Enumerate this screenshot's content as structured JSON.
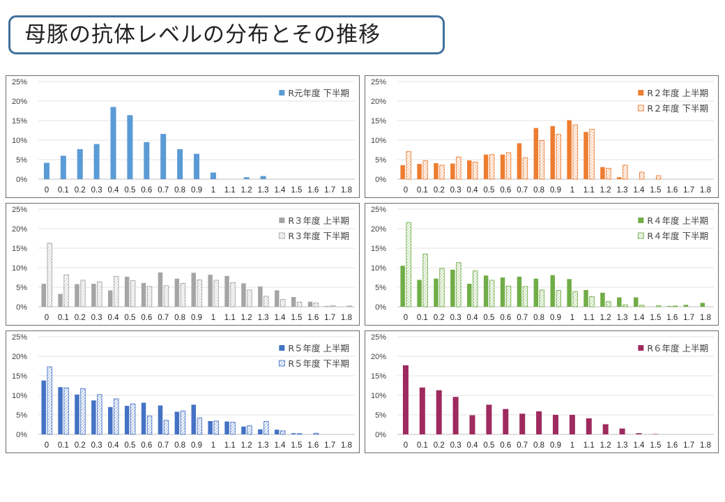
{
  "slide": {
    "title": "母豚の抗体レベルの分布とその推移"
  },
  "chart_data": [
    {
      "type": "bar",
      "categories": [
        "0",
        "0.1",
        "0.2",
        "0.3",
        "0.4",
        "0.5",
        "0.6",
        "0.7",
        "0.8",
        "0.9",
        "1",
        "1.1",
        "1.2",
        "1.3",
        "1.4",
        "1.5",
        "1.6",
        "1.7",
        "1.8"
      ],
      "y_ticks": [
        "0%",
        "5%",
        "10%",
        "15%",
        "20%",
        "25%"
      ],
      "ylim": [
        0,
        25
      ],
      "legend_position": "top-right",
      "series": [
        {
          "name": "R元年度 下半期",
          "style": "solid",
          "color": "#5b9bd5",
          "values": [
            4.2,
            6.0,
            7.7,
            9.0,
            18.5,
            16.4,
            9.5,
            11.6,
            7.7,
            6.5,
            1.7,
            0,
            0.5,
            0.8,
            0,
            0,
            0,
            0,
            0
          ]
        }
      ]
    },
    {
      "type": "bar",
      "categories": [
        "0",
        "0.1",
        "0.2",
        "0.3",
        "0.4",
        "0.5",
        "0.6",
        "0.7",
        "0.8",
        "0.9",
        "1",
        "1.1",
        "1.2",
        "1.3",
        "1.4",
        "1.5",
        "1.6",
        "1.7",
        "1.8"
      ],
      "y_ticks": [
        "0%",
        "5%",
        "10%",
        "15%",
        "20%",
        "25%"
      ],
      "ylim": [
        0,
        25
      ],
      "legend_position": "top-right",
      "series": [
        {
          "name": "R２年度 上半期",
          "style": "solid",
          "color": "#ed7d31",
          "values": [
            3.6,
            3.9,
            4.1,
            4.0,
            4.8,
            6.3,
            6.3,
            9.2,
            13.1,
            13.6,
            15.1,
            12.1,
            3.1,
            0.5,
            0,
            0,
            0,
            0,
            0
          ]
        },
        {
          "name": "R２年度 下半期",
          "style": "hatch",
          "color": "#ed7d31",
          "values": [
            7.1,
            4.7,
            3.6,
            5.7,
            4.4,
            6.3,
            6.8,
            5.5,
            9.9,
            11.5,
            13.9,
            12.8,
            2.8,
            3.6,
            1.8,
            0.9,
            0,
            0,
            0
          ]
        }
      ]
    },
    {
      "type": "bar",
      "categories": [
        "0",
        "0.1",
        "0.2",
        "0.3",
        "0.4",
        "0.5",
        "0.6",
        "0.7",
        "0.8",
        "0.9",
        "1",
        "1.1",
        "1.2",
        "1.3",
        "1.4",
        "1.5",
        "1.6",
        "1.7",
        "1.8"
      ],
      "y_ticks": [
        "0%",
        "5%",
        "10%",
        "15%",
        "20%",
        "25%"
      ],
      "ylim": [
        0,
        25
      ],
      "legend_position": "top-right",
      "series": [
        {
          "name": "R３年度 上半期",
          "style": "solid",
          "color": "#a5a5a5",
          "values": [
            5.9,
            3.3,
            5.8,
            5.9,
            4.2,
            7.7,
            6.1,
            8.8,
            7.2,
            8.7,
            8.2,
            7.9,
            6.0,
            5.2,
            4.2,
            2.5,
            1.3,
            0.2,
            0
          ]
        },
        {
          "name": "R３年度 下半期",
          "style": "hatch",
          "color": "#a5a5a5",
          "values": [
            16.3,
            8.2,
            6.8,
            6.4,
            7.8,
            6.7,
            5.2,
            5.4,
            6.0,
            6.9,
            6.8,
            6.2,
            4.3,
            2.7,
            1.9,
            1.2,
            1.0,
            0.3,
            0.2
          ]
        }
      ]
    },
    {
      "type": "bar",
      "categories": [
        "0",
        "0.1",
        "0.2",
        "0.3",
        "0.4",
        "0.5",
        "0.6",
        "0.7",
        "0.8",
        "0.9",
        "1",
        "1.1",
        "1.2",
        "1.3",
        "1.4",
        "1.5",
        "1.6",
        "1.7",
        "1.8"
      ],
      "y_ticks": [
        "0%",
        "5%",
        "10%",
        "15%",
        "20%",
        "25%"
      ],
      "ylim": [
        0,
        25
      ],
      "legend_position": "top-right",
      "series": [
        {
          "name": "R４年度 上半期",
          "style": "solid",
          "color": "#70ad47",
          "values": [
            10.5,
            6.9,
            7.2,
            9.5,
            5.9,
            8.0,
            7.5,
            7.7,
            7.2,
            8.1,
            7.1,
            4.3,
            3.6,
            2.4,
            2.4,
            0,
            0.2,
            0.5,
            1.0
          ]
        },
        {
          "name": "R４年度 下半期",
          "style": "hatch",
          "color": "#70ad47",
          "values": [
            21.6,
            13.5,
            9.8,
            11.3,
            9.2,
            6.8,
            5.3,
            5.2,
            4.3,
            4.2,
            3.9,
            2.6,
            1.3,
            0.5,
            0.4,
            0.3,
            0.2,
            0,
            0
          ]
        }
      ]
    },
    {
      "type": "bar",
      "categories": [
        "0",
        "0.1",
        "0.2",
        "0.3",
        "0.4",
        "0.5",
        "0.6",
        "0.7",
        "0.8",
        "0.9",
        "1",
        "1.1",
        "1.2",
        "1.3",
        "1.4",
        "1.5",
        "1.6",
        "1.7",
        "1.8"
      ],
      "y_ticks": [
        "0%",
        "5%",
        "10%",
        "15%",
        "20%",
        "25%"
      ],
      "ylim": [
        0,
        25
      ],
      "legend_position": "top-right",
      "series": [
        {
          "name": "R５年度 上半期",
          "style": "solid",
          "color": "#4472c4",
          "values": [
            13.8,
            12.1,
            10.2,
            8.7,
            7.0,
            7.3,
            8.1,
            7.4,
            5.8,
            7.6,
            3.4,
            3.3,
            2.0,
            1.3,
            1.2,
            0.3,
            0,
            0,
            0
          ]
        },
        {
          "name": "R５年度 下半期",
          "style": "hatch",
          "color": "#4472c4",
          "values": [
            17.3,
            11.9,
            11.7,
            10.2,
            9.1,
            7.8,
            4.7,
            3.6,
            6.0,
            4.2,
            3.4,
            3.1,
            2.2,
            3.3,
            0.9,
            0.2,
            0.3,
            0,
            0
          ]
        }
      ]
    },
    {
      "type": "bar",
      "categories": [
        "0",
        "0.1",
        "0.2",
        "0.3",
        "0.4",
        "0.5",
        "0.6",
        "0.7",
        "0.8",
        "0.9",
        "1",
        "1.1",
        "1.2",
        "1.3",
        "1.4",
        "1.5",
        "1.6",
        "1.7",
        "1.8"
      ],
      "y_ticks": [
        "0%",
        "5%",
        "10%",
        "15%",
        "20%",
        "25%"
      ],
      "ylim": [
        0,
        25
      ],
      "legend_position": "top-right",
      "series": [
        {
          "name": "R６年度 上半期",
          "style": "solid",
          "color": "#9e2a5e",
          "values": [
            17.7,
            12.0,
            11.3,
            9.6,
            4.9,
            7.6,
            6.5,
            5.3,
            5.9,
            5.0,
            5.0,
            4.1,
            2.6,
            1.5,
            0.3,
            0.1,
            0,
            0,
            0
          ]
        }
      ]
    }
  ]
}
